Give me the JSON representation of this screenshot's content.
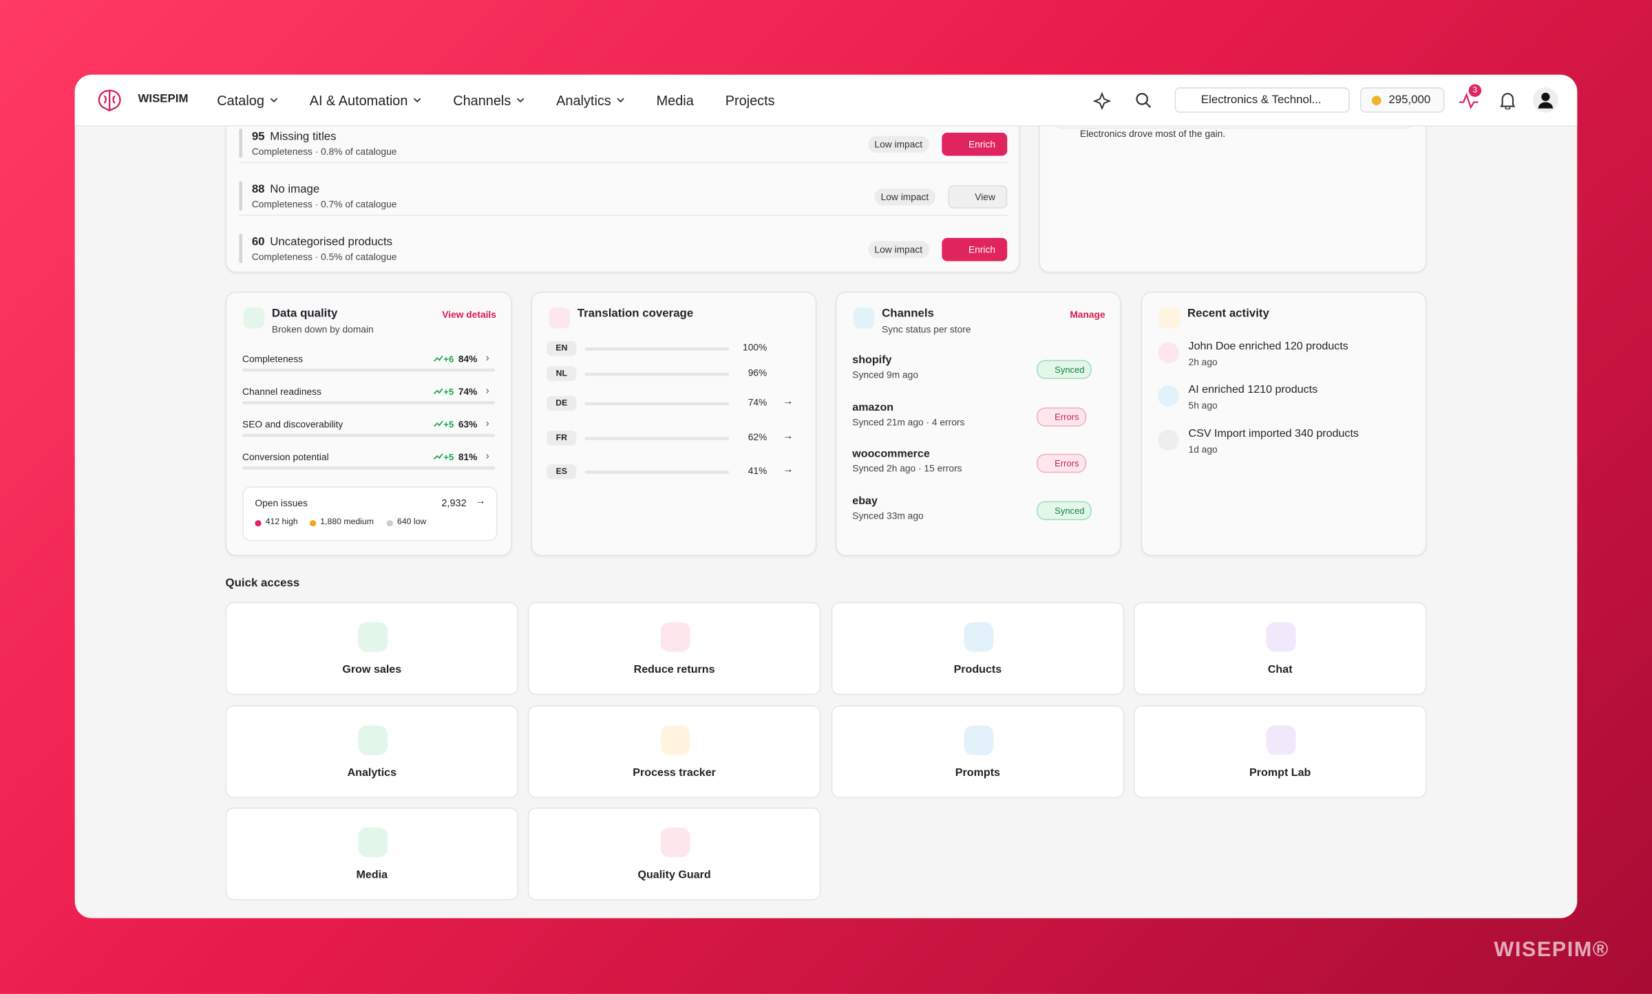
{
  "nav": {
    "brand": "WISEPIM",
    "menu": [
      "Catalog",
      "AI & Automation",
      "Channels",
      "Analytics",
      "Media",
      "Projects"
    ],
    "store": "Electronics & Technol...",
    "credits": "295,000",
    "alerts": "3"
  },
  "issues": [
    {
      "count": "95",
      "title": "Missing titles",
      "meta": "Completeness",
      "share": "0.8% of catalogue",
      "impact": "Low impact",
      "action": "Enrich"
    },
    {
      "count": "88",
      "title": "No image",
      "meta": "Completeness",
      "share": "0.7% of catalogue",
      "impact": "Low impact",
      "action": "View"
    },
    {
      "count": "60",
      "title": "Uncategorised products",
      "meta": "Completeness",
      "share": "0.5% of catalogue",
      "impact": "Low impact",
      "action": "Enrich"
    }
  ],
  "insight": "Electronics drove most of the gain.",
  "data_quality": {
    "title": "Data quality",
    "subtitle": "Broken down by domain",
    "link": "View details",
    "rows": [
      {
        "name": "Completeness",
        "delta": "+6",
        "value": 84,
        "label": "84%",
        "color": "#22c55e"
      },
      {
        "name": "Channel readiness",
        "delta": "+5",
        "value": 74,
        "label": "74%",
        "color": "#f5a623"
      },
      {
        "name": "SEO and discoverability",
        "delta": "+5",
        "value": 63,
        "label": "63%",
        "color": "#f5a623"
      },
      {
        "name": "Conversion potential",
        "delta": "+5",
        "value": 81,
        "label": "81%",
        "color": "#22c55e"
      }
    ],
    "open_issues": {
      "label": "Open issues",
      "total": "2,932",
      "high": "412 high",
      "medium": "1,880 medium",
      "low": "640 low"
    }
  },
  "translation": {
    "title": "Translation coverage",
    "rows": [
      {
        "lang": "EN",
        "value": 100,
        "label": "100%",
        "color": "#22c55e"
      },
      {
        "lang": "NL",
        "value": 96,
        "label": "96%",
        "color": "#22c55e"
      },
      {
        "lang": "DE",
        "value": 74,
        "label": "74%",
        "color": "#f5a623"
      },
      {
        "lang": "FR",
        "value": 62,
        "label": "62%",
        "color": "#f5a623"
      },
      {
        "lang": "ES",
        "value": 41,
        "label": "41%",
        "color": "#e0245e"
      }
    ]
  },
  "channels": {
    "title": "Channels",
    "subtitle": "Sync status per store",
    "link": "Manage",
    "rows": [
      {
        "name": "shopify",
        "status": "Synced 9m ago",
        "badge": "Synced"
      },
      {
        "name": "amazon",
        "status": "Synced 21m ago · 4 errors",
        "badge": "Errors"
      },
      {
        "name": "woocommerce",
        "status": "Synced 2h ago · 15 errors",
        "badge": "Errors"
      },
      {
        "name": "ebay",
        "status": "Synced 33m ago",
        "badge": "Synced"
      }
    ]
  },
  "activity": {
    "title": "Recent activity",
    "items": [
      {
        "text": "John Doe enriched 120 products",
        "time": "2h ago"
      },
      {
        "text": "AI enriched 1210 products",
        "time": "5h ago"
      },
      {
        "text": "CSV Import imported 340 products",
        "time": "1d ago"
      }
    ]
  },
  "quick_access": {
    "title": "Quick access",
    "items": [
      "Grow sales",
      "Reduce returns",
      "Products",
      "Chat",
      "Analytics",
      "Process tracker",
      "Prompts",
      "Prompt Lab",
      "Media",
      "Quality Guard"
    ]
  },
  "watermark": "WISEPIM®"
}
